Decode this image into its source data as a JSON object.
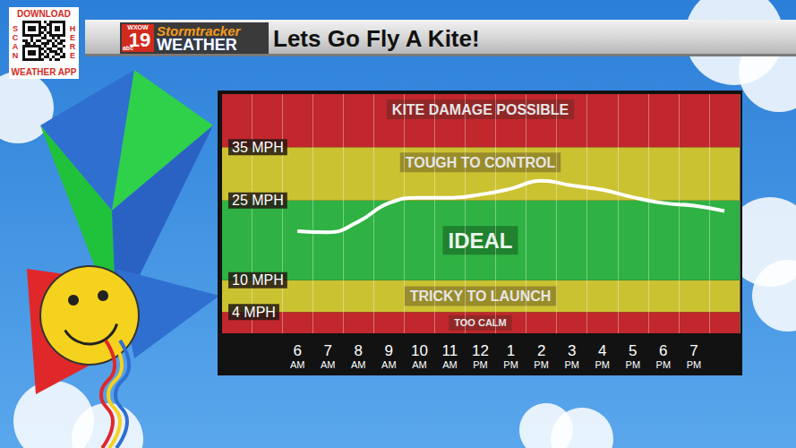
{
  "chart_data": {
    "type": "line",
    "title": "Lets Go Fly A Kite!",
    "categories": [
      null,
      null,
      "6 AM",
      "7 AM",
      "8 AM",
      "9 AM",
      "10 AM",
      "11 AM",
      "12 PM",
      "1 PM",
      "2 PM",
      "3 PM",
      "4 PM",
      "5 PM",
      "6 PM",
      "7 PM",
      null
    ],
    "values": [
      null,
      null,
      19.2,
      19,
      21,
      24.5,
      25.5,
      25.5,
      26.1,
      27.2,
      28.7,
      27.8,
      27,
      25.6,
      24.5,
      24,
      23
    ],
    "color": "#ffffff",
    "line_style": "solid",
    "ylim": [
      0,
      45
    ],
    "yticks": [
      {
        "value": 4,
        "label": "4 MPH"
      },
      {
        "value": 10,
        "label": "10 MPH"
      },
      {
        "value": 25,
        "label": "25 MPH"
      },
      {
        "value": 35,
        "label": "35 MPH"
      }
    ],
    "grid": true,
    "bands": [
      {
        "label": "TOO CALM",
        "from": 0,
        "to": 4,
        "color": "#c1272d"
      },
      {
        "label": "TRICKY TO LAUNCH",
        "from": 4,
        "to": 10,
        "color": "#cbc232"
      },
      {
        "label": "IDEAL",
        "from": 10,
        "to": 25,
        "color": "#2fb243"
      },
      {
        "label": "TOUGH TO CONTROL",
        "from": 25,
        "to": 35,
        "color": "#cbc232"
      },
      {
        "label": "KITE DAMAGE POSSIBLE",
        "from": 35,
        "to": 45,
        "color": "#c1272d"
      }
    ],
    "header": {
      "qr_top": "DOWNLOAD",
      "qr_left": "SCAN",
      "qr_right": "HERE",
      "qr_bottom": "WEATHER APP",
      "logo_station": "WXOW",
      "logo_number": "19",
      "logo_network": "abc",
      "logo_line1": "Stormtracker",
      "logo_line2": "WEATHER"
    }
  }
}
